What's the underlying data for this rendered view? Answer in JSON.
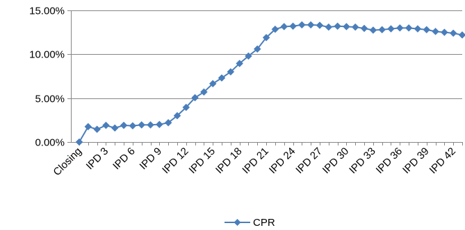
{
  "chart_data": {
    "type": "line",
    "x": [
      "Closing",
      "IPD 1",
      "IPD 2",
      "IPD 3",
      "IPD 4",
      "IPD 5",
      "IPD 6",
      "IPD 7",
      "IPD 8",
      "IPD 9",
      "IPD 10",
      "IPD 11",
      "IPD 12",
      "IPD 13",
      "IPD 14",
      "IPD 15",
      "IPD 16",
      "IPD 17",
      "IPD 18",
      "IPD 19",
      "IPD 20",
      "IPD 21",
      "IPD 22",
      "IPD 23",
      "IPD 24",
      "IPD 25",
      "IPD 26",
      "IPD 27",
      "IPD 28",
      "IPD 29",
      "IPD 30",
      "IPD 31",
      "IPD 32",
      "IPD 33",
      "IPD 34",
      "IPD 35",
      "IPD 36",
      "IPD 37",
      "IPD 38",
      "IPD 39",
      "IPD 40",
      "IPD 41",
      "IPD 42",
      "IPD 43"
    ],
    "tick_labels": [
      "Closing",
      "IPD 3",
      "IPD 6",
      "IPD 9",
      "IPD 12",
      "IPD 15",
      "IPD 18",
      "IPD 21",
      "IPD 24",
      "IPD 27",
      "IPD 30",
      "IPD 33",
      "IPD 36",
      "IPD 39",
      "IPD 42"
    ],
    "series": [
      {
        "name": "CPR",
        "color": "#4A7EBB",
        "values": [
          0.0,
          1.75,
          1.45,
          1.9,
          1.6,
          1.9,
          1.85,
          1.95,
          1.95,
          2.0,
          2.2,
          3.0,
          3.95,
          5.05,
          5.7,
          6.65,
          7.3,
          8.0,
          8.95,
          9.8,
          10.6,
          11.9,
          12.85,
          13.15,
          13.2,
          13.35,
          13.35,
          13.3,
          13.1,
          13.2,
          13.15,
          13.1,
          12.95,
          12.75,
          12.8,
          12.9,
          13.0,
          13.0,
          12.9,
          12.8,
          12.6,
          12.5,
          12.4,
          12.2
        ]
      }
    ],
    "y_ticks": [
      "0.00%",
      "5.00%",
      "10.00%",
      "15.00%"
    ],
    "ylim": [
      0,
      15
    ],
    "title": "",
    "xlabel": "",
    "ylabel": "",
    "grid": "horizontal",
    "legend": "bottom"
  }
}
